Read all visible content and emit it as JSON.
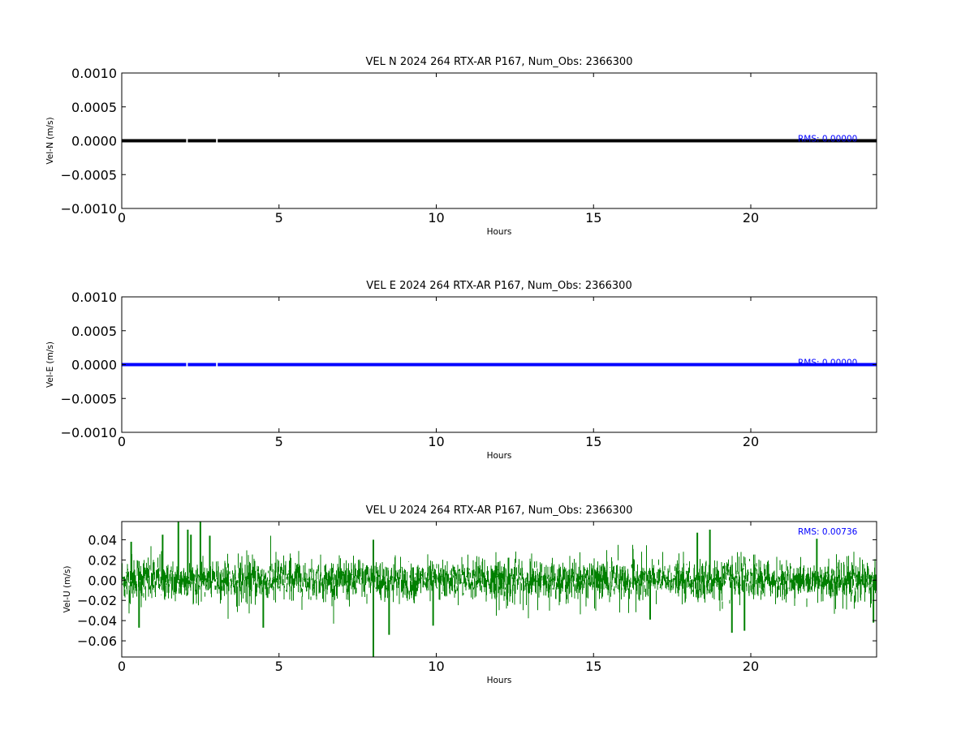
{
  "chart_data": [
    {
      "type": "line",
      "title": "VEL N 2024 264 RTX-AR  P167, Num_Obs: 2366300",
      "xlabel": "Hours",
      "ylabel": "Vel-N (m/s)",
      "xlim": [
        0,
        24
      ],
      "ylim": [
        -0.001,
        0.001
      ],
      "x_ticks": [
        "0",
        "5",
        "10",
        "15",
        "20"
      ],
      "x_tick_values": [
        0,
        5,
        10,
        15,
        20
      ],
      "y_ticks": [
        "−0.0010",
        "−0.0005",
        "0.0000",
        "0.0005",
        "0.0010"
      ],
      "y_tick_values": [
        -0.001,
        -0.0005,
        0,
        0.0005,
        0.001
      ],
      "series": [
        {
          "color": "#000000",
          "x": [
            0,
            2.05,
            2.1,
            3.0,
            3.05,
            24
          ],
          "y": [
            0,
            0,
            0,
            0,
            0,
            0
          ],
          "gaps_hours": [
            [
              2.05,
              2.1
            ],
            [
              3.0,
              3.05
            ]
          ]
        }
      ],
      "annotation": "RMS:  0.00000",
      "annotation_color": "#0000ff",
      "grid": false
    },
    {
      "type": "line",
      "title": "VEL E 2024 264 RTX-AR  P167, Num_Obs: 2366300",
      "xlabel": "Hours",
      "ylabel": "Vel-E (m/s)",
      "xlim": [
        0,
        24
      ],
      "ylim": [
        -0.001,
        0.001
      ],
      "x_ticks": [
        "0",
        "5",
        "10",
        "15",
        "20"
      ],
      "x_tick_values": [
        0,
        5,
        10,
        15,
        20
      ],
      "y_ticks": [
        "−0.0010",
        "−0.0005",
        "0.0000",
        "0.0005",
        "0.0010"
      ],
      "y_tick_values": [
        -0.001,
        -0.0005,
        0,
        0.0005,
        0.001
      ],
      "series": [
        {
          "color": "#0000ff",
          "x": [
            0,
            2.05,
            2.1,
            3.0,
            3.05,
            24
          ],
          "y": [
            0,
            0,
            0,
            0,
            0,
            0
          ],
          "gaps_hours": [
            [
              2.05,
              2.1
            ],
            [
              3.0,
              3.05
            ]
          ]
        }
      ],
      "annotation": "RMS:  0.00000",
      "annotation_color": "#0000ff",
      "grid": false
    },
    {
      "type": "line",
      "title": "VEL U 2024 264 RTX-AR  P167, Num_Obs: 2366300",
      "xlabel": "Hours",
      "ylabel": "Vel-U (m/s)",
      "xlim": [
        0,
        24
      ],
      "ylim": [
        -0.076,
        0.058
      ],
      "x_ticks": [
        "0",
        "5",
        "10",
        "15",
        "20"
      ],
      "x_tick_values": [
        0,
        5,
        10,
        15,
        20
      ],
      "y_ticks": [
        "−0.06",
        "−0.04",
        "−0.02",
        "0.00",
        "0.02",
        "0.04"
      ],
      "y_tick_values": [
        -0.06,
        -0.04,
        -0.02,
        0,
        0.02,
        0.04
      ],
      "series": [
        {
          "color": "#008000",
          "noise_rms": 0.00736,
          "spikes": [
            {
              "x": 1.8,
              "y": 0.058
            },
            {
              "x": 2.5,
              "y": 0.058
            },
            {
              "x": 1.3,
              "y": 0.045
            },
            {
              "x": 2.1,
              "y": 0.05
            },
            {
              "x": 2.2,
              "y": 0.045
            },
            {
              "x": 2.8,
              "y": 0.044
            },
            {
              "x": 8.0,
              "y": -0.076
            },
            {
              "x": 8.5,
              "y": -0.054
            },
            {
              "x": 4.5,
              "y": -0.047
            },
            {
              "x": 0.55,
              "y": -0.047
            },
            {
              "x": 19.4,
              "y": -0.052
            },
            {
              "x": 19.8,
              "y": -0.05
            },
            {
              "x": 18.7,
              "y": 0.05
            },
            {
              "x": 18.3,
              "y": 0.047
            },
            {
              "x": 22.1,
              "y": 0.041
            },
            {
              "x": 16.8,
              "y": -0.039
            },
            {
              "x": 0.3,
              "y": 0.038
            },
            {
              "x": 23.9,
              "y": -0.042
            },
            {
              "x": 9.9,
              "y": -0.045
            },
            {
              "x": 8.0,
              "y": 0.04
            }
          ]
        }
      ],
      "annotation": "RMS:  0.00736",
      "annotation_color": "#0000ff",
      "grid": false
    }
  ]
}
